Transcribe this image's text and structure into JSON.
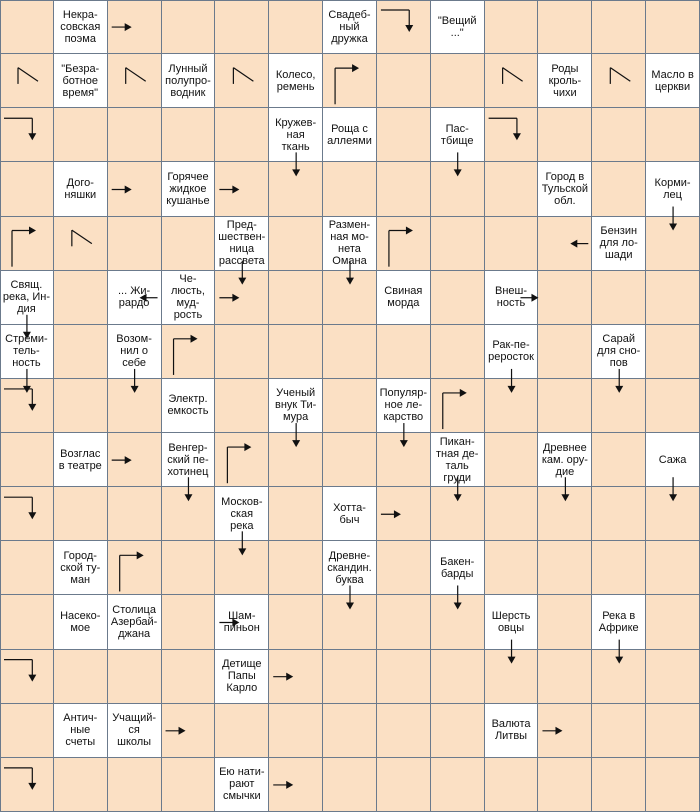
{
  "puzzle": {
    "rows": 15,
    "cols": 13,
    "colors": {
      "clue_bg": "#ffffff",
      "empty_bg": "#fbe0c4",
      "grid_line": "#6b7a8c",
      "arrow": "#111111"
    },
    "clues": [
      {
        "r": 0,
        "c": 1,
        "text": "Некра-\nсовская\nпоэма"
      },
      {
        "r": 0,
        "c": 6,
        "text": "Свадеб-\nный\nдружка"
      },
      {
        "r": 0,
        "c": 8,
        "text": "\"Вещий\n...\""
      },
      {
        "r": 1,
        "c": 1,
        "text": "\"Безра-\nботное\nвремя\""
      },
      {
        "r": 1,
        "c": 3,
        "text": "Лунный\nполупро-\nводник"
      },
      {
        "r": 1,
        "c": 5,
        "text": "Колесо,\nремень"
      },
      {
        "r": 1,
        "c": 10,
        "text": "Роды\nкроль-\nчихи"
      },
      {
        "r": 1,
        "c": 12,
        "text": "Масло в\nцеркви"
      },
      {
        "r": 2,
        "c": 5,
        "text": "Кружев-\nная\nткань"
      },
      {
        "r": 2,
        "c": 6,
        "text": "Роща с\nаллеями"
      },
      {
        "r": 2,
        "c": 8,
        "text": "Пас-\nтбище"
      },
      {
        "r": 3,
        "c": 1,
        "text": "Дого-\nняшки"
      },
      {
        "r": 3,
        "c": 3,
        "text": "Горячее\nжидкое\nкушанье"
      },
      {
        "r": 3,
        "c": 10,
        "text": "Город в\nТульской\nобл."
      },
      {
        "r": 3,
        "c": 12,
        "text": "Корми-\nлец"
      },
      {
        "r": 4,
        "c": 4,
        "text": "Пред-\nшествен-\nница\nрассвета"
      },
      {
        "r": 4,
        "c": 6,
        "text": "Размен-\nная мо-\nнета\nОмана"
      },
      {
        "r": 4,
        "c": 11,
        "text": "Бензин\nдля ло-\nшади"
      },
      {
        "r": 5,
        "c": 0,
        "text": "Свящ.\nрека, Ин-\nдия"
      },
      {
        "r": 5,
        "c": 2,
        "text": "... Жи-\nрардо"
      },
      {
        "r": 5,
        "c": 3,
        "text": "Че-\nлюсть,\nмуд-\nрость"
      },
      {
        "r": 5,
        "c": 7,
        "text": "Свиная\nморда"
      },
      {
        "r": 5,
        "c": 9,
        "text": "Внеш-\nность"
      },
      {
        "r": 6,
        "c": 0,
        "text": "Стреми-\nтель-\nность"
      },
      {
        "r": 6,
        "c": 2,
        "text": "Возом-\nнил о\nсебе"
      },
      {
        "r": 6,
        "c": 9,
        "text": "Рак-пе-\nрероcток"
      },
      {
        "r": 6,
        "c": 11,
        "text": "Сарай\nдля сно-\nпов"
      },
      {
        "r": 7,
        "c": 3,
        "text": "Электр.\nемкость"
      },
      {
        "r": 7,
        "c": 5,
        "text": "Ученый\nвнук Ти-\nмура"
      },
      {
        "r": 7,
        "c": 7,
        "text": "Популяр-\nное ле-\nкарство"
      },
      {
        "r": 8,
        "c": 1,
        "text": "Возглас\nв театре"
      },
      {
        "r": 8,
        "c": 3,
        "text": "Венгер-\nский пе-\nхотинец"
      },
      {
        "r": 8,
        "c": 8,
        "text": "Пикан-\nтная де-\nталь\nгруди"
      },
      {
        "r": 8,
        "c": 10,
        "text": "Древнее\nкам. ору-\nдие"
      },
      {
        "r": 8,
        "c": 12,
        "text": "Сажа"
      },
      {
        "r": 9,
        "c": 4,
        "text": "Москов-\nская\nрека"
      },
      {
        "r": 9,
        "c": 6,
        "text": "Хотта-\nбыч"
      },
      {
        "r": 10,
        "c": 1,
        "text": "Город-\nской ту-\nман"
      },
      {
        "r": 10,
        "c": 6,
        "text": "Древне-\nскандин.\nбуква"
      },
      {
        "r": 10,
        "c": 8,
        "text": "Бакен-\nбарды"
      },
      {
        "r": 11,
        "c": 1,
        "text": "Насеко-\nмое"
      },
      {
        "r": 11,
        "c": 2,
        "text": "Столица\nАзербай-\nджана"
      },
      {
        "r": 11,
        "c": 4,
        "text": "Шам-\nпиньон"
      },
      {
        "r": 11,
        "c": 9,
        "text": "Шерсть\nовцы"
      },
      {
        "r": 11,
        "c": 11,
        "text": "Река в\nАфрике"
      },
      {
        "r": 12,
        "c": 4,
        "text": "Детище\nПапы\nКарло"
      },
      {
        "r": 13,
        "c": 1,
        "text": "Антич-\nные\nсчеты"
      },
      {
        "r": 13,
        "c": 2,
        "text": "Учащий-\nся\nшколы"
      },
      {
        "r": 13,
        "c": 9,
        "text": "Валюта\nЛитвы"
      },
      {
        "r": 14,
        "c": 4,
        "text": "Ею нати-\nрают\nсмычки"
      }
    ],
    "arrows": [
      {
        "r": 0,
        "c": 2,
        "dir": "right"
      },
      {
        "r": 0,
        "c": 7,
        "dir": "bend-down"
      },
      {
        "r": 1,
        "c": 0,
        "dir": "bend-right"
      },
      {
        "r": 1,
        "c": 2,
        "dir": "bend-right"
      },
      {
        "r": 1,
        "c": 4,
        "dir": "bend-right"
      },
      {
        "r": 1,
        "c": 9,
        "dir": "bend-right"
      },
      {
        "r": 1,
        "c": 11,
        "dir": "bend-right"
      },
      {
        "r": 1,
        "c": 6,
        "dir": "up-right"
      },
      {
        "r": 2,
        "c": 0,
        "dir": "bend-down"
      },
      {
        "r": 2,
        "c": 9,
        "dir": "bend-down"
      },
      {
        "r": 2,
        "c": 8,
        "dir": "down-below"
      },
      {
        "r": 2,
        "c": 5,
        "dir": "down-below"
      },
      {
        "r": 3,
        "c": 2,
        "dir": "right"
      },
      {
        "r": 3,
        "c": 4,
        "dir": "right"
      },
      {
        "r": 3,
        "c": 12,
        "dir": "down-below"
      },
      {
        "r": 4,
        "c": 0,
        "dir": "up-right"
      },
      {
        "r": 4,
        "c": 1,
        "dir": "bend-right"
      },
      {
        "r": 4,
        "c": 7,
        "dir": "up-right"
      },
      {
        "r": 4,
        "c": 10,
        "dir": "left"
      },
      {
        "r": 4,
        "c": 4,
        "dir": "down-below"
      },
      {
        "r": 4,
        "c": 6,
        "dir": "down-below"
      },
      {
        "r": 5,
        "c": 4,
        "dir": "right"
      },
      {
        "r": 5,
        "c": 2,
        "dir": "left"
      },
      {
        "r": 5,
        "c": 9,
        "dir": "right-edge"
      },
      {
        "r": 5,
        "c": 0,
        "dir": "down-below"
      },
      {
        "r": 6,
        "c": 3,
        "dir": "up-right"
      },
      {
        "r": 6,
        "c": 9,
        "dir": "down-below"
      },
      {
        "r": 6,
        "c": 11,
        "dir": "down-below"
      },
      {
        "r": 6,
        "c": 0,
        "dir": "down-below"
      },
      {
        "r": 6,
        "c": 2,
        "dir": "down-below"
      },
      {
        "r": 7,
        "c": 0,
        "dir": "bend-down"
      },
      {
        "r": 7,
        "c": 8,
        "dir": "up-right"
      },
      {
        "r": 7,
        "c": 5,
        "dir": "down-below"
      },
      {
        "r": 7,
        "c": 7,
        "dir": "down-below"
      },
      {
        "r": 8,
        "c": 2,
        "dir": "right"
      },
      {
        "r": 8,
        "c": 4,
        "dir": "up-right"
      },
      {
        "r": 8,
        "c": 3,
        "dir": "down-below"
      },
      {
        "r": 8,
        "c": 8,
        "dir": "down-below"
      },
      {
        "r": 8,
        "c": 10,
        "dir": "down-below"
      },
      {
        "r": 8,
        "c": 12,
        "dir": "down-below"
      },
      {
        "r": 9,
        "c": 0,
        "dir": "bend-down"
      },
      {
        "r": 9,
        "c": 4,
        "dir": "down-below"
      },
      {
        "r": 9,
        "c": 7,
        "dir": "right"
      },
      {
        "r": 10,
        "c": 2,
        "dir": "up-right"
      },
      {
        "r": 10,
        "c": 6,
        "dir": "down-below"
      },
      {
        "r": 10,
        "c": 8,
        "dir": "down-below"
      },
      {
        "r": 11,
        "c": 4,
        "dir": "right"
      },
      {
        "r": 11,
        "c": 9,
        "dir": "down-below"
      },
      {
        "r": 11,
        "c": 11,
        "dir": "down-below"
      },
      {
        "r": 12,
        "c": 0,
        "dir": "bend-down"
      },
      {
        "r": 12,
        "c": 5,
        "dir": "right"
      },
      {
        "r": 13,
        "c": 3,
        "dir": "right"
      },
      {
        "r": 13,
        "c": 10,
        "dir": "right"
      },
      {
        "r": 14,
        "c": 0,
        "dir": "bend-down"
      },
      {
        "r": 14,
        "c": 5,
        "dir": "right"
      }
    ]
  }
}
